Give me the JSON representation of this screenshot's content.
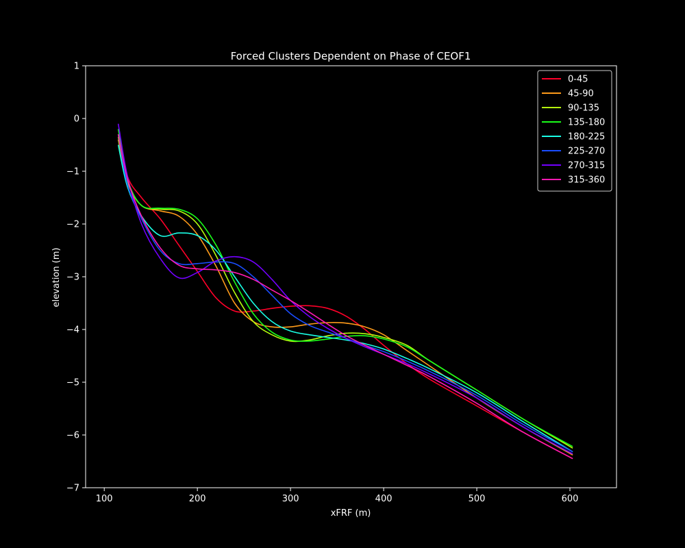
{
  "chart_data": {
    "type": "line",
    "title": "Forced Clusters Dependent on Phase of CEOF1",
    "xlabel": "xFRF (m)",
    "ylabel": "elevation (m)",
    "xlim": [
      80,
      650
    ],
    "ylim": [
      -7,
      1
    ],
    "xticks": [
      100,
      200,
      300,
      400,
      500,
      600
    ],
    "yticks": [
      1,
      0,
      -1,
      -2,
      -3,
      -4,
      -5,
      -6,
      -7
    ],
    "grid": false,
    "legend_position": "top-right",
    "background": "#000000",
    "foreground": "#ffffff",
    "x": [
      115,
      125,
      140,
      160,
      180,
      200,
      220,
      240,
      260,
      280,
      300,
      320,
      340,
      360,
      380,
      400,
      425,
      450,
      500,
      550,
      603
    ],
    "series": [
      {
        "name": "0-45",
        "color": "#ff0029",
        "values": [
          -0.3,
          -1.1,
          -1.5,
          -1.9,
          -2.4,
          -2.9,
          -3.4,
          -3.65,
          -3.65,
          -3.6,
          -3.56,
          -3.55,
          -3.6,
          -3.75,
          -4.0,
          -4.3,
          -4.65,
          -4.95,
          -5.45,
          -5.95,
          -6.45
        ]
      },
      {
        "name": "45-90",
        "color": "#ff9b1a",
        "values": [
          -0.4,
          -1.2,
          -1.65,
          -1.75,
          -1.85,
          -2.2,
          -2.8,
          -3.5,
          -3.85,
          -3.95,
          -3.95,
          -3.9,
          -3.87,
          -3.88,
          -3.95,
          -4.1,
          -4.4,
          -4.7,
          -5.3,
          -5.85,
          -6.38
        ]
      },
      {
        "name": "90-135",
        "color": "#b5ff0d",
        "values": [
          -0.35,
          -1.2,
          -1.65,
          -1.72,
          -1.75,
          -2.0,
          -2.6,
          -3.3,
          -3.85,
          -4.1,
          -4.22,
          -4.2,
          -4.12,
          -4.07,
          -4.08,
          -4.15,
          -4.3,
          -4.6,
          -5.15,
          -5.7,
          -6.25
        ]
      },
      {
        "name": "135-180",
        "color": "#1aff1a",
        "values": [
          -0.2,
          -1.15,
          -1.65,
          -1.7,
          -1.72,
          -1.9,
          -2.4,
          -3.1,
          -3.7,
          -4.05,
          -4.2,
          -4.22,
          -4.18,
          -4.13,
          -4.12,
          -4.18,
          -4.33,
          -4.6,
          -5.15,
          -5.7,
          -6.22
        ]
      },
      {
        "name": "180-225",
        "color": "#1affe6",
        "values": [
          -0.5,
          -1.3,
          -1.85,
          -2.22,
          -2.17,
          -2.22,
          -2.5,
          -3.0,
          -3.5,
          -3.85,
          -4.03,
          -4.1,
          -4.15,
          -4.2,
          -4.27,
          -4.37,
          -4.55,
          -4.75,
          -5.2,
          -5.75,
          -6.32
        ]
      },
      {
        "name": "225-270",
        "color": "#1a4dff",
        "values": [
          -0.3,
          -1.25,
          -1.9,
          -2.5,
          -2.75,
          -2.75,
          -2.72,
          -2.75,
          -3.0,
          -3.35,
          -3.7,
          -3.92,
          -4.05,
          -4.17,
          -4.3,
          -4.42,
          -4.6,
          -4.8,
          -5.25,
          -5.8,
          -6.32
        ]
      },
      {
        "name": "270-315",
        "color": "#7300ff",
        "values": [
          -0.1,
          -1.1,
          -2.0,
          -2.65,
          -3.02,
          -2.92,
          -2.7,
          -2.62,
          -2.72,
          -3.05,
          -3.45,
          -3.75,
          -3.98,
          -4.17,
          -4.33,
          -4.47,
          -4.65,
          -4.85,
          -5.3,
          -5.85,
          -6.36
        ]
      },
      {
        "name": "315-360",
        "color": "#ff1ab3",
        "values": [
          -0.3,
          -1.15,
          -1.85,
          -2.45,
          -2.78,
          -2.85,
          -2.87,
          -2.92,
          -3.05,
          -3.25,
          -3.45,
          -3.67,
          -3.9,
          -4.12,
          -4.3,
          -4.47,
          -4.68,
          -4.9,
          -5.4,
          -5.95,
          -6.45
        ]
      }
    ]
  }
}
